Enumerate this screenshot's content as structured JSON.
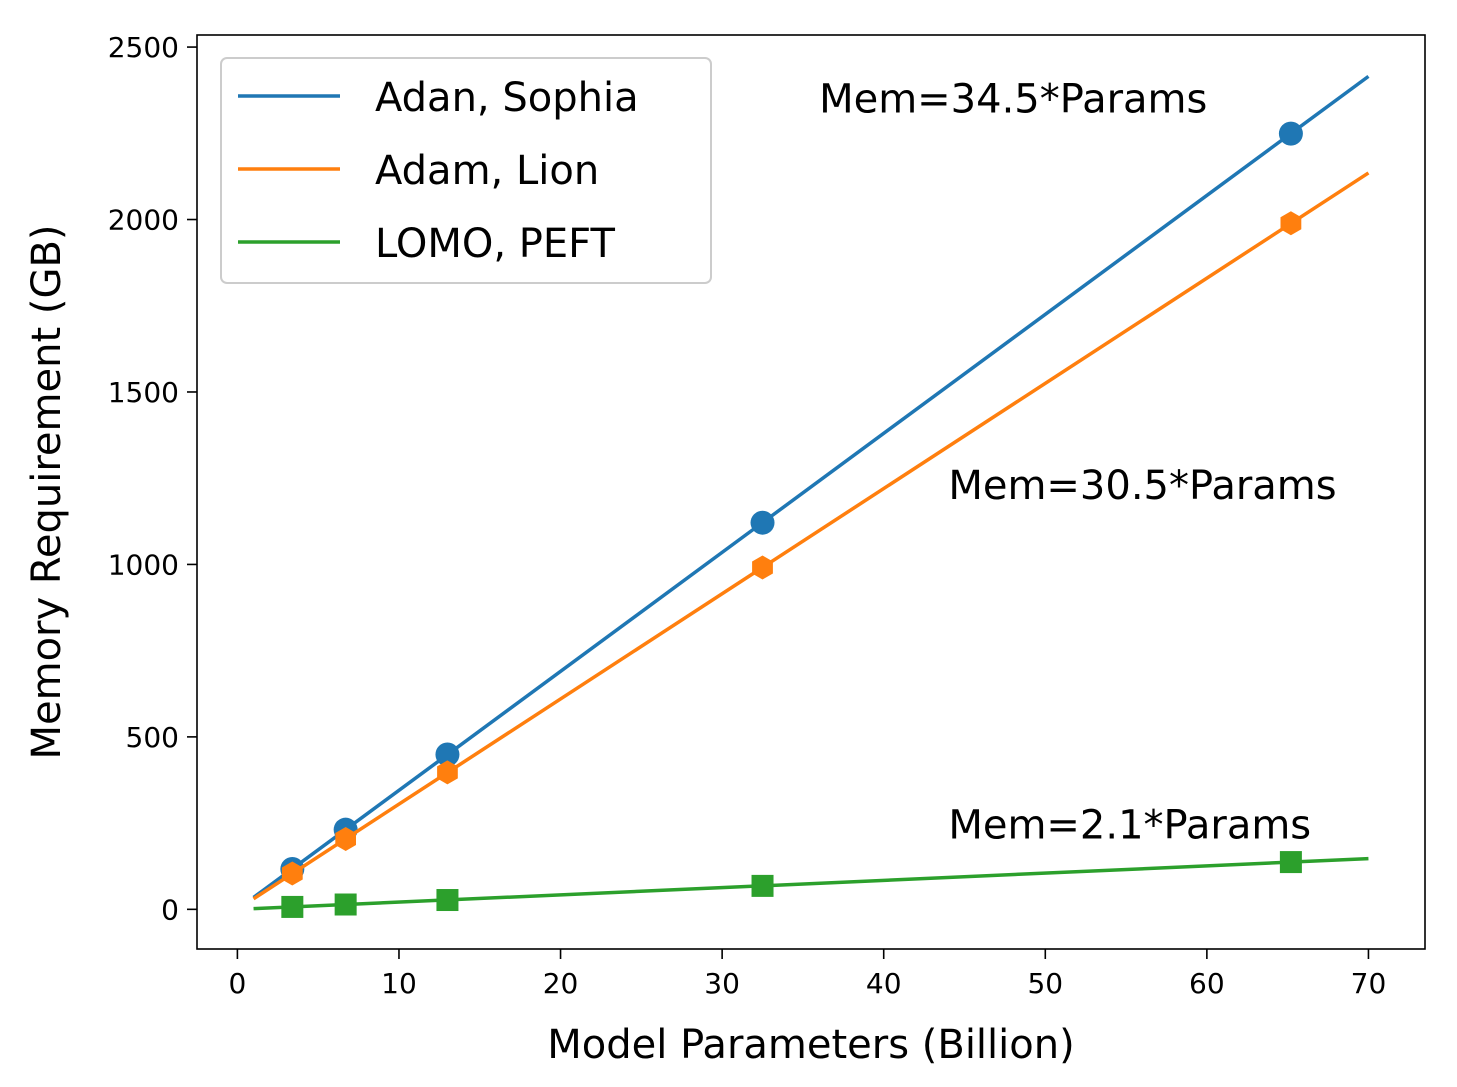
{
  "chart_data": {
    "type": "line",
    "title": "",
    "xlabel": "Model Parameters (Billion)",
    "ylabel": "Memory Requirement (GB)",
    "xlim": [
      -2.5,
      73.5
    ],
    "ylim": [
      -115,
      2535
    ],
    "xticks": [
      0,
      10,
      20,
      30,
      40,
      50,
      60,
      70
    ],
    "yticks": [
      0,
      500,
      1000,
      1500,
      2000,
      2500
    ],
    "grid": false,
    "legend_position": "top-left",
    "series": [
      {
        "name": "Adan, Sophia",
        "color": "#1f77b4",
        "marker": "circle",
        "line_x": [
          1,
          70
        ],
        "line_y": [
          34.5,
          2415
        ],
        "points": [
          [
            3.4,
            117
          ],
          [
            6.7,
            231
          ],
          [
            13,
            449
          ],
          [
            32.5,
            1121
          ],
          [
            65.2,
            2249
          ]
        ]
      },
      {
        "name": "Adam, Lion",
        "color": "#ff7f0e",
        "marker": "hexagon",
        "line_x": [
          1,
          70
        ],
        "line_y": [
          30.5,
          2135
        ],
        "points": [
          [
            3.4,
            104
          ],
          [
            6.7,
            204
          ],
          [
            13,
            397
          ],
          [
            32.5,
            991
          ],
          [
            65.2,
            1989
          ]
        ]
      },
      {
        "name": "LOMO, PEFT",
        "color": "#2ca02c",
        "marker": "square",
        "line_x": [
          1,
          70
        ],
        "line_y": [
          2.1,
          147
        ],
        "points": [
          [
            3.4,
            7
          ],
          [
            6.7,
            14
          ],
          [
            13,
            27
          ],
          [
            32.5,
            68
          ],
          [
            65.2,
            137
          ]
        ]
      }
    ],
    "annotations": [
      {
        "text": "Mem=34.5*Params",
        "x": 36,
        "y": 2310
      },
      {
        "text": "Mem=30.5*Params",
        "x": 44,
        "y": 1190
      },
      {
        "text": "Mem=2.1*Params",
        "x": 44,
        "y": 205
      }
    ]
  }
}
